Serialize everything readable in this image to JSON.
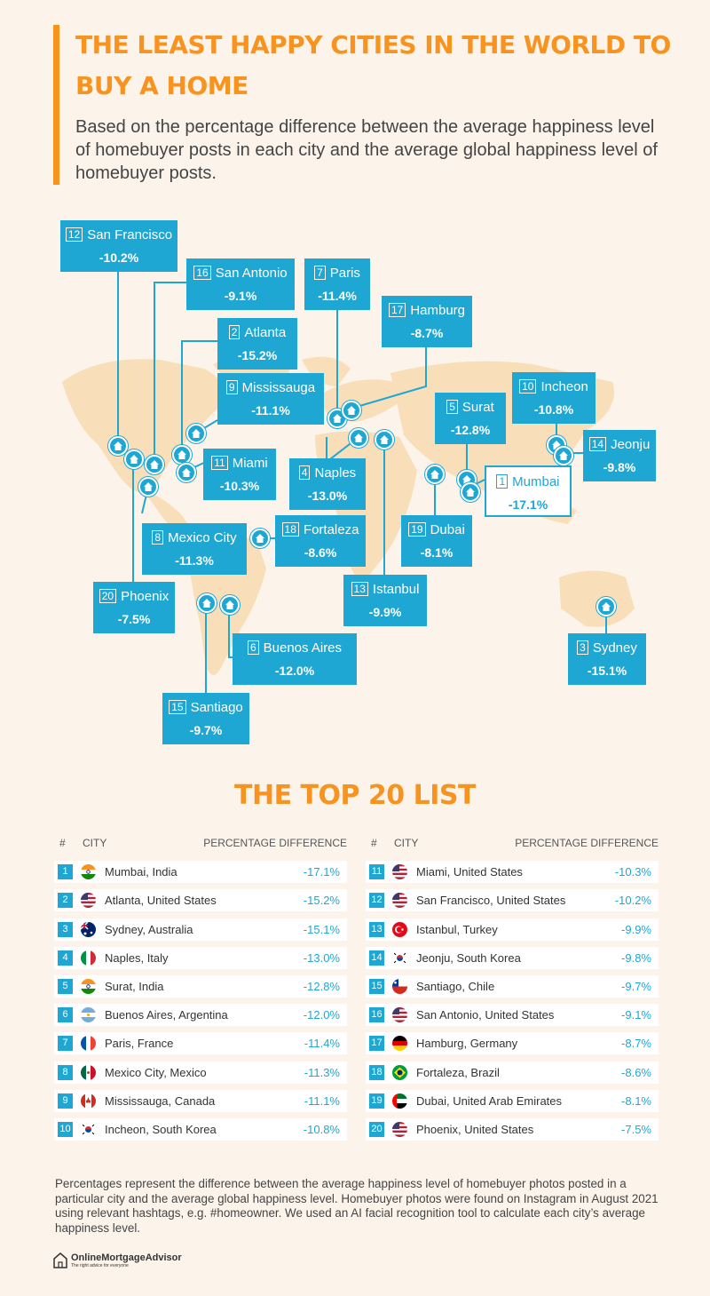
{
  "header": {
    "title_line1": "THE LEAST HAPPY CITIES IN THE WORLD TO",
    "title_line2": "BUY A HOME",
    "subtitle": "Based on the percentage difference between the average happiness level of homebuyer posts in each city and the average global happiness level of homebuyer posts."
  },
  "map": {
    "accent_color": "#1fa7d4",
    "land_color": "#f8dfb9",
    "pin_icon": "house-icon",
    "cities": [
      {
        "rank": "12",
        "name": "San Francisco",
        "value": "-10.2%"
      },
      {
        "rank": "16",
        "name": "San Antonio",
        "value": "-9.1%"
      },
      {
        "rank": "7",
        "name": "Paris",
        "value": "-11.4%"
      },
      {
        "rank": "17",
        "name": "Hamburg",
        "value": "-8.7%"
      },
      {
        "rank": "2",
        "name": "Atlanta",
        "value": "-15.2%"
      },
      {
        "rank": "9",
        "name": "Mississauga",
        "value": "-11.1%"
      },
      {
        "rank": "10",
        "name": "Incheon",
        "value": "-10.8%"
      },
      {
        "rank": "5",
        "name": "Surat",
        "value": "-12.8%"
      },
      {
        "rank": "14",
        "name": "Jeonju",
        "value": "-9.8%"
      },
      {
        "rank": "11",
        "name": "Miami",
        "value": "-10.3%"
      },
      {
        "rank": "4",
        "name": "Naples",
        "value": "-13.0%"
      },
      {
        "rank": "1",
        "name": "Mumbai",
        "value": "-17.1%"
      },
      {
        "rank": "8",
        "name": "Mexico City",
        "value": "-11.3%"
      },
      {
        "rank": "18",
        "name": "Fortaleza",
        "value": "-8.6%"
      },
      {
        "rank": "19",
        "name": "Dubai",
        "value": "-8.1%"
      },
      {
        "rank": "20",
        "name": "Phoenix",
        "value": "-7.5%"
      },
      {
        "rank": "13",
        "name": "Istanbul",
        "value": "-9.9%"
      },
      {
        "rank": "6",
        "name": "Buenos Aires",
        "value": "-12.0%"
      },
      {
        "rank": "3",
        "name": "Sydney",
        "value": "-15.1%"
      },
      {
        "rank": "15",
        "name": "Santiago",
        "value": "-9.7%"
      }
    ]
  },
  "list": {
    "title": "THE TOP 20 LIST",
    "col_num": "#",
    "col_city": "CITY",
    "col_pct": "PERCENTAGE DIFFERENCE",
    "left": [
      {
        "num": "1",
        "city": "Mumbai, India",
        "pct": "-17.1%",
        "flag": "flag-india-icon"
      },
      {
        "num": "2",
        "city": "Atlanta, United States",
        "pct": "-15.2%",
        "flag": "flag-usa-icon"
      },
      {
        "num": "3",
        "city": "Sydney, Australia",
        "pct": "-15.1%",
        "flag": "flag-australia-icon"
      },
      {
        "num": "4",
        "city": "Naples, Italy",
        "pct": "-13.0%",
        "flag": "flag-italy-icon"
      },
      {
        "num": "5",
        "city": "Surat, India",
        "pct": "-12.8%",
        "flag": "flag-india-icon"
      },
      {
        "num": "6",
        "city": "Buenos Aires, Argentina",
        "pct": "-12.0%",
        "flag": "flag-argentina-icon"
      },
      {
        "num": "7",
        "city": "Paris, France",
        "pct": "-11.4%",
        "flag": "flag-france-icon"
      },
      {
        "num": "8",
        "city": "Mexico City, Mexico",
        "pct": "-11.3%",
        "flag": "flag-mexico-icon"
      },
      {
        "num": "9",
        "city": "Mississauga, Canada",
        "pct": "-11.1%",
        "flag": "flag-canada-icon"
      },
      {
        "num": "10",
        "city": "Incheon, South Korea",
        "pct": "-10.8%",
        "flag": "flag-south-korea-icon"
      }
    ],
    "right": [
      {
        "num": "11",
        "city": "Miami, United States",
        "pct": "-10.3%",
        "flag": "flag-usa-icon"
      },
      {
        "num": "12",
        "city": "San Francisco, United States",
        "pct": "-10.2%",
        "flag": "flag-usa-icon"
      },
      {
        "num": "13",
        "city": "Istanbul, Turkey",
        "pct": "-9.9%",
        "flag": "flag-turkey-icon"
      },
      {
        "num": "14",
        "city": "Jeonju, South Korea",
        "pct": "-9.8%",
        "flag": "flag-south-korea-icon"
      },
      {
        "num": "15",
        "city": "Santiago, Chile",
        "pct": "-9.7%",
        "flag": "flag-chile-icon"
      },
      {
        "num": "16",
        "city": "San Antonio, United States",
        "pct": "-9.1%",
        "flag": "flag-usa-icon"
      },
      {
        "num": "17",
        "city": "Hamburg, Germany",
        "pct": "-8.7%",
        "flag": "flag-germany-icon"
      },
      {
        "num": "18",
        "city": "Fortaleza, Brazil",
        "pct": "-8.6%",
        "flag": "flag-brazil-icon"
      },
      {
        "num": "19",
        "city": "Dubai, United Arab Emirates",
        "pct": "-8.1%",
        "flag": "flag-uae-icon"
      },
      {
        "num": "20",
        "city": "Phoenix, United States",
        "pct": "-7.5%",
        "flag": "flag-usa-icon"
      }
    ]
  },
  "footnote": "Percentages represent the difference between the average happiness level of homebuyer photos posted in a particular city and the average global happiness level. Homebuyer photos were found on Instagram in August 2021 using relevant hashtags, e.g. #homeowner. We used an AI facial recognition tool to calculate each city’s average happiness level.",
  "logo": {
    "name": "OnlineMortgageAdvisor",
    "tagline": "The right advice for everyone"
  }
}
